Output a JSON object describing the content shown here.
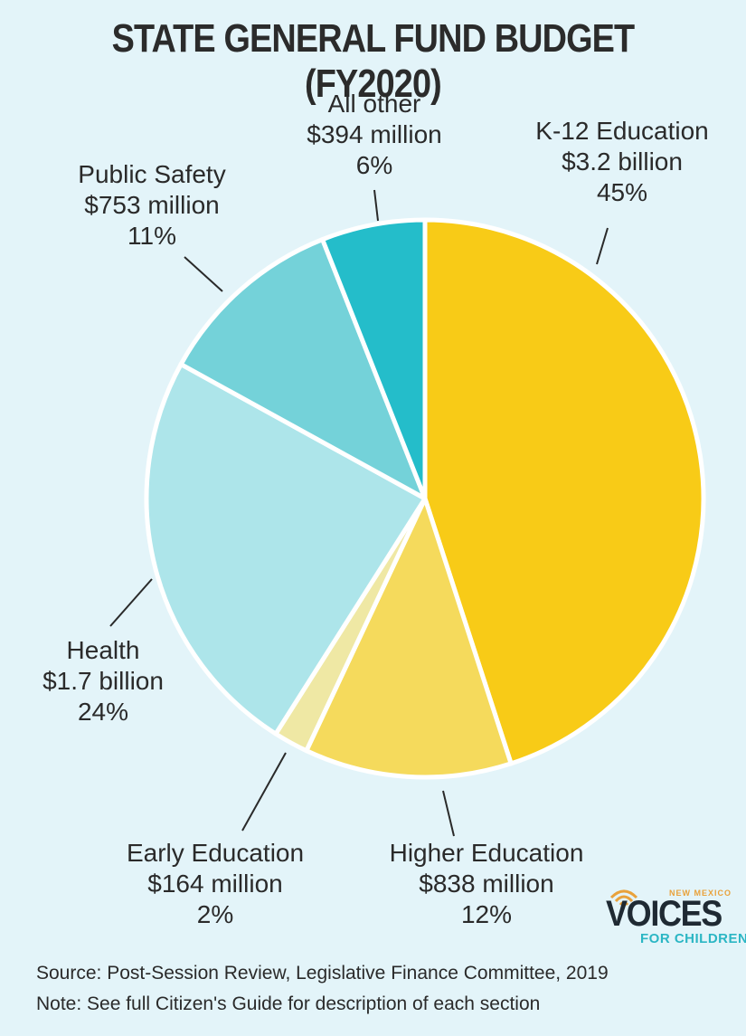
{
  "chart_data": {
    "type": "pie",
    "title": "STATE GENERAL FUND BUDGET (FY2020)",
    "slices": [
      {
        "name": "K-12 Education",
        "amount": "$3.2 billion",
        "percent_label": "45%",
        "value": 45,
        "color": "#f8cb17"
      },
      {
        "name": "Higher Education",
        "amount": "$838 million",
        "percent_label": "12%",
        "value": 12,
        "color": "#f5da5c"
      },
      {
        "name": "Early Education",
        "amount": "$164 million",
        "percent_label": "2%",
        "value": 2,
        "color": "#efe8a4"
      },
      {
        "name": "Health",
        "amount": "$1.7 billion",
        "percent_label": "24%",
        "value": 24,
        "color": "#ade5ea"
      },
      {
        "name": "Public Safety",
        "amount": "$753 million",
        "percent_label": "11%",
        "value": 11,
        "color": "#74d2d9"
      },
      {
        "name": "All other",
        "amount": "$394 million",
        "percent_label": "6%",
        "value": 6,
        "color": "#24bdca"
      }
    ],
    "start_angle_deg": 0,
    "direction": "clockwise"
  },
  "footer": {
    "source": "Source: Post-Session Review, Legislative Finance Committee, 2019",
    "note": "Note: See full Citizen's Guide for description of each section"
  },
  "logo": {
    "top_text": "NEW MEXICO",
    "main_text": "VOICES",
    "sub_text": "FOR CHILDREN",
    "colors": {
      "accent": "#e9a23b",
      "main": "#1f2a33",
      "sub": "#2bb6c4"
    }
  }
}
